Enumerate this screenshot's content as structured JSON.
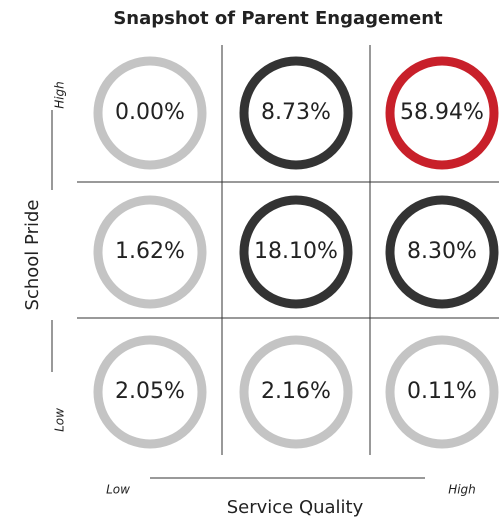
{
  "chart_data": {
    "type": "matrix",
    "title": "Snapshot of Parent Engagement",
    "x_label": "Service Quality",
    "y_label": "School Pride",
    "x_low": "Low",
    "x_high": "High",
    "y_low": "Low",
    "y_high": "High",
    "values": [
      [
        0,
        8.73,
        58.94
      ],
      [
        1.62,
        18.1,
        8.3
      ],
      [
        2.05,
        2.16,
        0.11
      ]
    ],
    "value_labels": [
      [
        "0.00%",
        "8.73%",
        "58.94%"
      ],
      [
        "1.62%",
        "18.10%",
        "8.30%"
      ],
      [
        "2.05%",
        "2.16%",
        "0.11%"
      ]
    ],
    "colors": [
      [
        "#c4c4c4",
        "#333333",
        "#c8202a"
      ],
      [
        "#c4c4c4",
        "#333333",
        "#333333"
      ],
      [
        "#c4c4c4",
        "#c4c4c4",
        "#c4c4c4"
      ]
    ]
  }
}
